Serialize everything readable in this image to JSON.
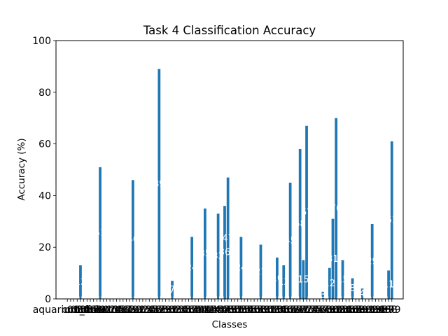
{
  "chart_data": {
    "type": "bar",
    "title": "Task 4 Classification Accuracy",
    "xlabel": "Classes",
    "ylabel": "Accuracy (%)",
    "ylim": [
      0,
      100
    ],
    "yticks": [
      0,
      20,
      40,
      60,
      80,
      100
    ],
    "grid": false,
    "bar_color": "#1f77b4",
    "categories": [
      "aquarium_fish",
      "c01",
      "c02",
      "c03",
      "c04",
      "c05",
      "c06",
      "c07",
      "c08",
      "c09",
      "c10",
      "c11",
      "c12",
      "c13",
      "c14",
      "c15",
      "c16",
      "c17",
      "c18",
      "c19",
      "c20",
      "c21",
      "c22",
      "c23",
      "c24",
      "c25",
      "c26",
      "c27",
      "c28",
      "c29",
      "c30",
      "c31",
      "c32",
      "c33",
      "c34",
      "c35",
      "c36",
      "c37",
      "c38",
      "c39",
      "c40",
      "c41",
      "c42",
      "c43",
      "c44",
      "c45",
      "c46",
      "c47",
      "c48",
      "c49",
      "c50",
      "c51",
      "c52",
      "c53",
      "c54",
      "c55",
      "c56",
      "c57",
      "c58",
      "c59",
      "c60",
      "c61",
      "c62",
      "c63",
      "c64",
      "c65",
      "c66",
      "c67",
      "c68",
      "c69",
      "c70",
      "c71",
      "c72",
      "c73",
      "c74",
      "c75",
      "c76",
      "c77",
      "c78",
      "c79",
      "c80",
      "c81",
      "c82",
      "c83",
      "c84",
      "c85",
      "c86",
      "c87",
      "c88",
      "c89",
      "c90",
      "c91",
      "c92",
      "c93",
      "c94",
      "c95",
      "c96",
      "c97",
      "c98",
      "c99"
    ],
    "values": [
      0,
      0,
      0,
      0,
      13,
      0,
      0,
      0,
      0,
      0,
      51,
      0,
      0,
      0,
      0,
      0,
      0,
      0,
      0,
      0,
      46,
      0,
      0,
      0,
      0,
      0,
      0,
      0,
      89,
      0,
      0,
      0,
      7,
      0,
      0,
      0,
      0,
      0,
      24,
      0,
      0,
      0,
      35,
      0,
      0,
      0,
      33,
      0,
      36,
      47,
      0,
      0,
      0,
      24,
      0,
      0,
      0,
      0,
      0,
      21,
      0,
      0,
      0,
      0,
      16,
      0,
      13,
      0,
      45,
      0,
      0,
      58,
      15,
      67,
      0,
      0,
      0,
      0,
      3,
      0,
      12,
      31,
      70,
      0,
      15,
      0,
      0,
      8,
      0,
      0,
      4,
      0,
      0,
      29,
      0,
      0,
      0,
      0,
      11,
      61
    ]
  }
}
